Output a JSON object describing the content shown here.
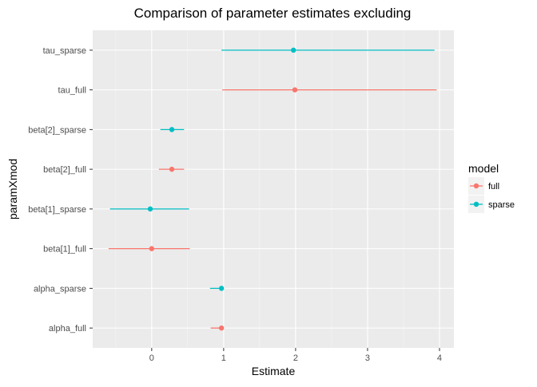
{
  "chart_data": {
    "type": "scatter",
    "title": "Comparison of parameter estimates excluding",
    "xlabel": "Estimate",
    "ylabel": "paramXmod",
    "xlim": [
      -0.82,
      4.2
    ],
    "x_ticks": [
      "0",
      "1",
      "2",
      "3",
      "4"
    ],
    "x_tick_values": [
      0,
      1,
      2,
      3,
      4
    ],
    "grid": true,
    "legend": {
      "title": "model",
      "placement": "right",
      "entries": [
        {
          "name": "full",
          "color": "#F8766D"
        },
        {
          "name": "sparse",
          "color": "#00BFC4"
        }
      ]
    },
    "categories": [
      "alpha_full",
      "alpha_sparse",
      "beta[1]_full",
      "beta[1]_sparse",
      "beta[2]_full",
      "beta[2]_sparse",
      "tau_full",
      "tau_sparse"
    ],
    "series": [
      {
        "name": "full",
        "color": "#F8766D",
        "points": [
          {
            "category": "alpha_full",
            "estimate": 0.97,
            "lower": 0.82,
            "upper": 1.0
          },
          {
            "category": "beta[1]_full",
            "estimate": 0.0,
            "lower": -0.6,
            "upper": 0.53
          },
          {
            "category": "beta[2]_full",
            "estimate": 0.28,
            "lower": 0.1,
            "upper": 0.45
          },
          {
            "category": "tau_full",
            "estimate": 1.99,
            "lower": 0.98,
            "upper": 3.96
          }
        ]
      },
      {
        "name": "sparse",
        "color": "#00BFC4",
        "points": [
          {
            "category": "alpha_sparse",
            "estimate": 0.97,
            "lower": 0.81,
            "upper": 1.0
          },
          {
            "category": "beta[1]_sparse",
            "estimate": -0.02,
            "lower": -0.58,
            "upper": 0.52
          },
          {
            "category": "beta[2]_sparse",
            "estimate": 0.28,
            "lower": 0.12,
            "upper": 0.45
          },
          {
            "category": "tau_sparse",
            "estimate": 1.97,
            "lower": 0.97,
            "upper": 3.93
          }
        ]
      }
    ]
  }
}
